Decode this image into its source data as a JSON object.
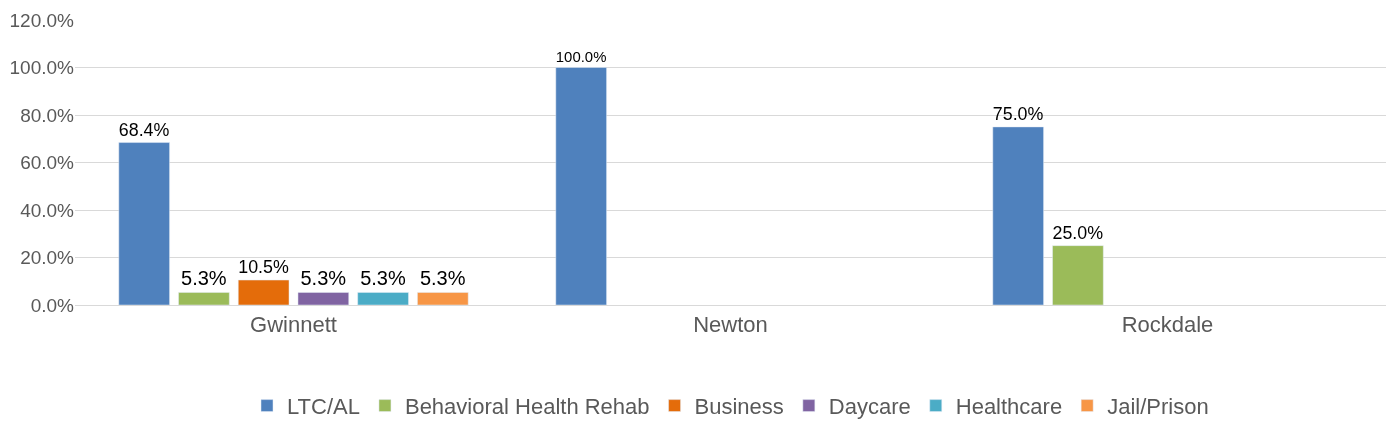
{
  "chart_data": {
    "type": "bar",
    "categories": [
      "Gwinnett",
      "Newton",
      "Rockdale"
    ],
    "series": [
      {
        "name": "LTC/AL",
        "color": "#4f81bd",
        "values": [
          68.4,
          100.0,
          75.0
        ],
        "value_labels": [
          "68.4%",
          "100.0%",
          "75.0%"
        ]
      },
      {
        "name": "Behavioral Health Rehab",
        "color": "#9bbb59",
        "values": [
          5.3,
          null,
          25.0
        ],
        "value_labels": [
          "5.3%",
          null,
          "25.0%"
        ]
      },
      {
        "name": "Business",
        "color": "#e46c0a",
        "values": [
          10.5,
          null,
          null
        ],
        "value_labels": [
          "10.5%",
          null,
          null
        ]
      },
      {
        "name": "Daycare",
        "color": "#8064a2",
        "values": [
          5.3,
          null,
          null
        ],
        "value_labels": [
          "5.3%",
          null,
          null
        ]
      },
      {
        "name": "Healthcare",
        "color": "#4bacc6",
        "values": [
          5.3,
          null,
          null
        ],
        "value_labels": [
          "5.3%",
          null,
          null
        ]
      },
      {
        "name": "Jail/Prison",
        "color": "#f79646",
        "values": [
          5.3,
          null,
          null
        ],
        "value_labels": [
          "5.3%",
          null,
          null
        ]
      }
    ],
    "ylim": [
      0,
      120
    ],
    "yticks": [
      {
        "value": 0,
        "label": "0.0%"
      },
      {
        "value": 20,
        "label": "20.0%"
      },
      {
        "value": 40,
        "label": "40.0%"
      },
      {
        "value": 60,
        "label": "60.0%"
      },
      {
        "value": 80,
        "label": "80.0%"
      },
      {
        "value": 100,
        "label": "100.0%"
      },
      {
        "value": 120,
        "label": "120.0%"
      }
    ],
    "grid": "y",
    "legend": "bottom"
  }
}
